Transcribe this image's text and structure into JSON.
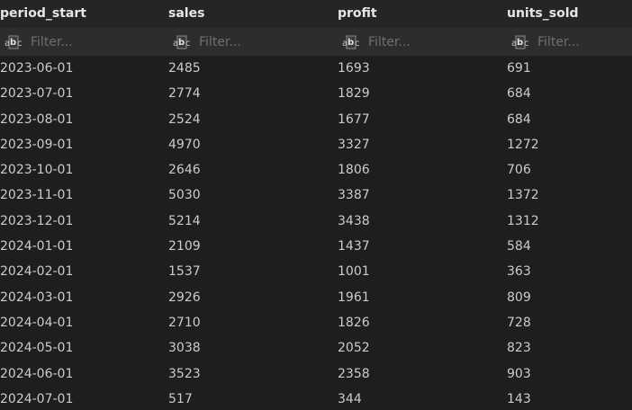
{
  "columns": [
    {
      "name": "period_start",
      "filter_placeholder": "Filter..."
    },
    {
      "name": "sales",
      "filter_placeholder": "Filter..."
    },
    {
      "name": "profit",
      "filter_placeholder": "Filter..."
    },
    {
      "name": "units_sold",
      "filter_placeholder": "Filter..."
    }
  ],
  "filter_icon": "abc-text-type-icon",
  "rows": [
    [
      "2023-06-01",
      "2485",
      "1693",
      "691"
    ],
    [
      "2023-07-01",
      "2774",
      "1829",
      "684"
    ],
    [
      "2023-08-01",
      "2524",
      "1677",
      "684"
    ],
    [
      "2023-09-01",
      "4970",
      "3327",
      "1272"
    ],
    [
      "2023-10-01",
      "2646",
      "1806",
      "706"
    ],
    [
      "2023-11-01",
      "5030",
      "3387",
      "1372"
    ],
    [
      "2023-12-01",
      "5214",
      "3438",
      "1312"
    ],
    [
      "2024-01-01",
      "2109",
      "1437",
      "584"
    ],
    [
      "2024-02-01",
      "1537",
      "1001",
      "363"
    ],
    [
      "2024-03-01",
      "2926",
      "1961",
      "809"
    ],
    [
      "2024-04-01",
      "2710",
      "1826",
      "728"
    ],
    [
      "2024-05-01",
      "3038",
      "2052",
      "823"
    ],
    [
      "2024-06-01",
      "3523",
      "2358",
      "903"
    ],
    [
      "2024-07-01",
      "517",
      "344",
      "143"
    ]
  ]
}
